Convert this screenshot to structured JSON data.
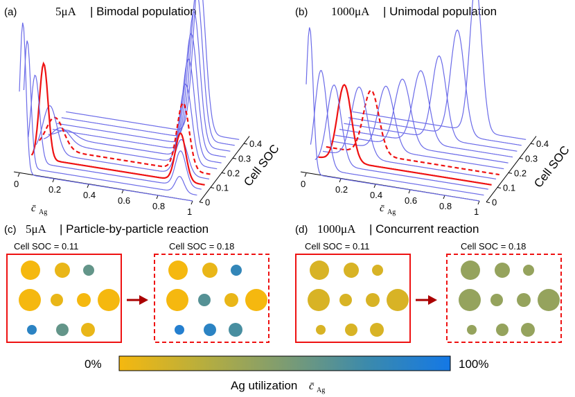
{
  "chart_data": [
    {
      "type": "line",
      "panel": "(a)",
      "title_current": "5μA",
      "title_text": "| Bimodal population",
      "xlabel": "c̄",
      "xlabel_sub": "Ag",
      "zlabel": "Cell SOC",
      "x_ticks": [
        "0",
        "0.2",
        "0.4",
        "0.6",
        "0.8",
        "1"
      ],
      "soc_ticks": [
        "0",
        "0.1",
        "0.2",
        "0.3",
        "0.4"
      ],
      "xlim": [
        0,
        1
      ],
      "soc_range": [
        0,
        0.45
      ],
      "distribution_type": "bimodal",
      "series": [
        {
          "soc": 0.0,
          "style": "blue",
          "peaks": [
            {
              "x": 0.02,
              "w": 0.018,
              "h": 0.95
            }
          ]
        },
        {
          "soc": 0.04,
          "style": "blue",
          "peaks": [
            {
              "x": 0.02,
              "w": 0.02,
              "h": 0.8
            },
            {
              "x": 0.9,
              "w": 0.025,
              "h": 0.1
            }
          ]
        },
        {
          "soc": 0.08,
          "style": "blue",
          "peaks": [
            {
              "x": 0.04,
              "w": 0.025,
              "h": 0.55
            },
            {
              "x": 0.88,
              "w": 0.03,
              "h": 0.22
            }
          ]
        },
        {
          "soc": 0.11,
          "style": "red-solid",
          "peaks": [
            {
              "x": 0.07,
              "w": 0.025,
              "h": 0.6
            },
            {
              "x": 0.86,
              "w": 0.03,
              "h": 0.3
            }
          ]
        },
        {
          "soc": 0.15,
          "style": "blue",
          "peaks": [
            {
              "x": 0.08,
              "w": 0.04,
              "h": 0.3
            },
            {
              "x": 0.84,
              "w": 0.035,
              "h": 0.22
            }
          ]
        },
        {
          "soc": 0.18,
          "style": "red-dashed",
          "peaks": [
            {
              "x": 0.09,
              "w": 0.05,
              "h": 0.2
            },
            {
              "x": 0.83,
              "w": 0.035,
              "h": 0.42
            }
          ]
        },
        {
          "soc": 0.22,
          "style": "blue",
          "peaks": [
            {
              "x": 0.1,
              "w": 0.05,
              "h": 0.1
            },
            {
              "x": 0.82,
              "w": 0.035,
              "h": 0.5
            }
          ]
        },
        {
          "soc": 0.26,
          "style": "blue",
          "peaks": [
            {
              "x": 0.11,
              "w": 0.05,
              "h": 0.05
            },
            {
              "x": 0.81,
              "w": 0.035,
              "h": 0.62
            }
          ]
        },
        {
          "soc": 0.3,
          "style": "blue",
          "peaks": [
            {
              "x": 0.8,
              "w": 0.035,
              "h": 0.74
            }
          ]
        },
        {
          "soc": 0.34,
          "style": "blue",
          "peaks": [
            {
              "x": 0.79,
              "w": 0.035,
              "h": 0.84
            }
          ]
        },
        {
          "soc": 0.38,
          "style": "blue",
          "peaks": [
            {
              "x": 0.78,
              "w": 0.035,
              "h": 0.93
            }
          ]
        },
        {
          "soc": 0.42,
          "style": "blue",
          "peaks": [
            {
              "x": 0.77,
              "w": 0.035,
              "h": 1.0
            }
          ]
        }
      ]
    },
    {
      "type": "line",
      "panel": "(b)",
      "title_current": "1000μA",
      "title_text": "| Unimodal population",
      "xlabel": "c̄",
      "xlabel_sub": "Ag",
      "zlabel": "Cell SOC",
      "x_ticks": [
        "0",
        "0.2",
        "0.4",
        "0.6",
        "0.8",
        "1"
      ],
      "soc_ticks": [
        "0",
        "0.1",
        "0.2",
        "0.3",
        "0.4"
      ],
      "xlim": [
        0,
        1
      ],
      "soc_range": [
        0,
        0.45
      ],
      "distribution_type": "unimodal",
      "series": [
        {
          "soc": 0.0,
          "style": "blue",
          "peaks": [
            {
              "x": 0.02,
              "w": 0.02,
              "h": 0.92
            }
          ]
        },
        {
          "soc": 0.04,
          "style": "blue",
          "peaks": [
            {
              "x": 0.06,
              "w": 0.035,
              "h": 0.62
            }
          ]
        },
        {
          "soc": 0.08,
          "style": "blue",
          "peaks": [
            {
              "x": 0.11,
              "w": 0.04,
              "h": 0.5
            }
          ]
        },
        {
          "soc": 0.11,
          "style": "red-solid",
          "peaks": [
            {
              "x": 0.15,
              "w": 0.04,
              "h": 0.48
            }
          ]
        },
        {
          "soc": 0.15,
          "style": "blue",
          "peaks": [
            {
              "x": 0.21,
              "w": 0.045,
              "h": 0.44
            }
          ]
        },
        {
          "soc": 0.18,
          "style": "red-dashed",
          "peaks": [
            {
              "x": 0.26,
              "w": 0.045,
              "h": 0.4
            }
          ]
        },
        {
          "soc": 0.22,
          "style": "blue",
          "peaks": [
            {
              "x": 0.32,
              "w": 0.045,
              "h": 0.4
            }
          ]
        },
        {
          "soc": 0.26,
          "style": "blue",
          "peaks": [
            {
              "x": 0.39,
              "w": 0.045,
              "h": 0.42
            }
          ]
        },
        {
          "soc": 0.3,
          "style": "blue",
          "peaks": [
            {
              "x": 0.47,
              "w": 0.045,
              "h": 0.45
            }
          ]
        },
        {
          "soc": 0.34,
          "style": "blue",
          "peaks": [
            {
              "x": 0.55,
              "w": 0.04,
              "h": 0.52
            }
          ]
        },
        {
          "soc": 0.38,
          "style": "blue",
          "peaks": [
            {
              "x": 0.63,
              "w": 0.04,
              "h": 0.66
            }
          ]
        },
        {
          "soc": 0.42,
          "style": "blue",
          "peaks": [
            {
              "x": 0.71,
              "w": 0.035,
              "h": 0.92
            }
          ]
        }
      ]
    }
  ],
  "panel_c": {
    "label": "(c)",
    "current": "5μA",
    "text": "| Particle-by-particle reaction",
    "before_label": "Cell SOC = 0.11",
    "after_label": "Cell SOC = 0.18",
    "before": {
      "frame": "solid",
      "particles": [
        0.0,
        0.05,
        0.6,
        0.0,
        0.05,
        0.0,
        0.0,
        0.85,
        0.6,
        0.05
      ]
    },
    "after": {
      "frame": "dashed",
      "particles": [
        0.0,
        0.05,
        0.8,
        0.0,
        0.65,
        0.05,
        0.0,
        0.9,
        0.85,
        0.7
      ]
    }
  },
  "panel_d": {
    "label": "(d)",
    "current": "1000μA",
    "text": "| Concurrent reaction",
    "before_label": "Cell SOC = 0.11",
    "after_label": "Cell SOC = 0.18",
    "before": {
      "frame": "solid",
      "particles": [
        0.12,
        0.12,
        0.12,
        0.12,
        0.12,
        0.12,
        0.12,
        0.12,
        0.12,
        0.12
      ]
    },
    "after": {
      "frame": "dashed",
      "particles": [
        0.4,
        0.4,
        0.4,
        0.4,
        0.4,
        0.4,
        0.4,
        0.4,
        0.4,
        0.4
      ]
    }
  },
  "colorbar": {
    "min_label": "0%",
    "max_label": "100%",
    "label": "Ag utilization",
    "label_symbol": "c̄",
    "label_sub": "Ag",
    "colors": [
      "#f5b80f",
      "#b8ae3d",
      "#7d9c72",
      "#3b8aac",
      "#1478e6"
    ]
  },
  "colors": {
    "blue_line": "#6a6ae8",
    "red_line": "#ee1111",
    "frame_red": "#ee1111",
    "arrow": "#aa0000"
  }
}
